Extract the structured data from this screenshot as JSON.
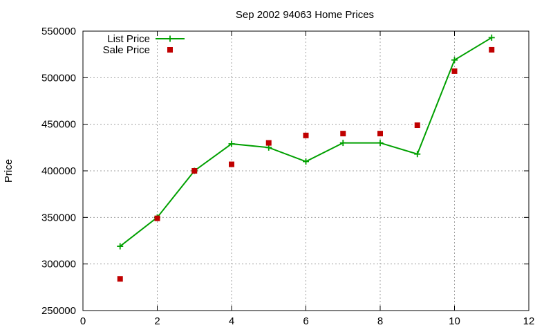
{
  "chart_data": {
    "type": "scatter",
    "title": "Sep 2002 94063 Home Prices",
    "xlabel": "",
    "ylabel": "Price",
    "xlim": [
      0,
      12
    ],
    "ylim": [
      250000,
      550000
    ],
    "xticks": [
      0,
      2,
      4,
      6,
      8,
      10,
      12
    ],
    "yticks": [
      250000,
      300000,
      350000,
      400000,
      450000,
      500000,
      550000
    ],
    "xtick_labels": [
      "0",
      "2",
      "4",
      "6",
      "8",
      "10",
      "12"
    ],
    "ytick_labels": [
      "250000",
      "300000",
      "350000",
      "400000",
      "450000",
      "500000",
      "550000"
    ],
    "grid": true,
    "legend_position": "top-left",
    "series": [
      {
        "name": "List Price",
        "style": "linespoints",
        "marker": "plus",
        "color": "#00a000",
        "x": [
          1,
          2,
          3,
          4,
          5,
          6,
          7,
          8,
          9,
          10,
          11
        ],
        "y": [
          319000,
          350000,
          400000,
          429000,
          425000,
          410000,
          430000,
          430000,
          418000,
          519000,
          543000
        ]
      },
      {
        "name": "Sale Price",
        "style": "points",
        "marker": "square",
        "color": "#c00000",
        "x": [
          1,
          2,
          3,
          4,
          5,
          6,
          7,
          8,
          9,
          10,
          11
        ],
        "y": [
          284000,
          349000,
          400000,
          407000,
          430000,
          438000,
          440000,
          440000,
          449000,
          507000,
          530000
        ]
      }
    ]
  }
}
